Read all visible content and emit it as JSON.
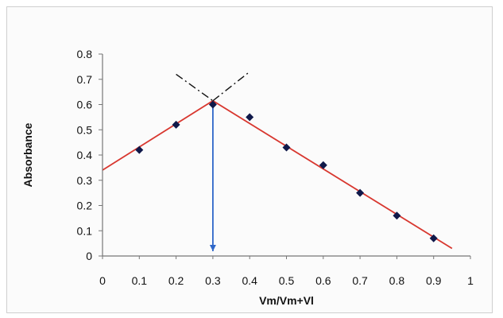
{
  "chart_data": {
    "type": "scatter",
    "xlabel": "Vm/Vm+Vl",
    "ylabel": "Absorbance",
    "xlim": [
      0,
      1
    ],
    "ylim": [
      0,
      0.8
    ],
    "x_ticks": [
      "0",
      "0.1",
      "0.2",
      "0.3",
      "0.4",
      "0.5",
      "0.6",
      "0.7",
      "0.8",
      "0.9",
      "1"
    ],
    "y_ticks": [
      "0",
      "0.1",
      "0.2",
      "0.3",
      "0.4",
      "0.5",
      "0.6",
      "0.7",
      "0.8"
    ],
    "grid": false,
    "points": [
      {
        "x": 0.1,
        "y": 0.42
      },
      {
        "x": 0.2,
        "y": 0.52
      },
      {
        "x": 0.3,
        "y": 0.6
      },
      {
        "x": 0.4,
        "y": 0.55
      },
      {
        "x": 0.5,
        "y": 0.43
      },
      {
        "x": 0.6,
        "y": 0.36
      },
      {
        "x": 0.7,
        "y": 0.25
      },
      {
        "x": 0.8,
        "y": 0.16
      },
      {
        "x": 0.9,
        "y": 0.07
      }
    ],
    "fit_lines": [
      {
        "from": {
          "x": 0.0,
          "y": 0.34
        },
        "to": {
          "x": 0.3,
          "y": 0.615
        }
      },
      {
        "from": {
          "x": 0.3,
          "y": 0.615
        },
        "to": {
          "x": 0.95,
          "y": 0.03
        }
      }
    ],
    "extrapolation_lines": [
      {
        "from": {
          "x": 0.2,
          "y": 0.72
        },
        "to": {
          "x": 0.3,
          "y": 0.615
        }
      },
      {
        "from": {
          "x": 0.3,
          "y": 0.615
        },
        "to": {
          "x": 0.4,
          "y": 0.73
        }
      }
    ],
    "marker_arrow": {
      "x": 0.3,
      "y_from": 0.615,
      "y_to": 0.0
    },
    "colors": {
      "points": "#10194a",
      "fit_line": "#d8372f",
      "extrapolation_line": "#111111",
      "arrow": "#2f67c9"
    }
  }
}
